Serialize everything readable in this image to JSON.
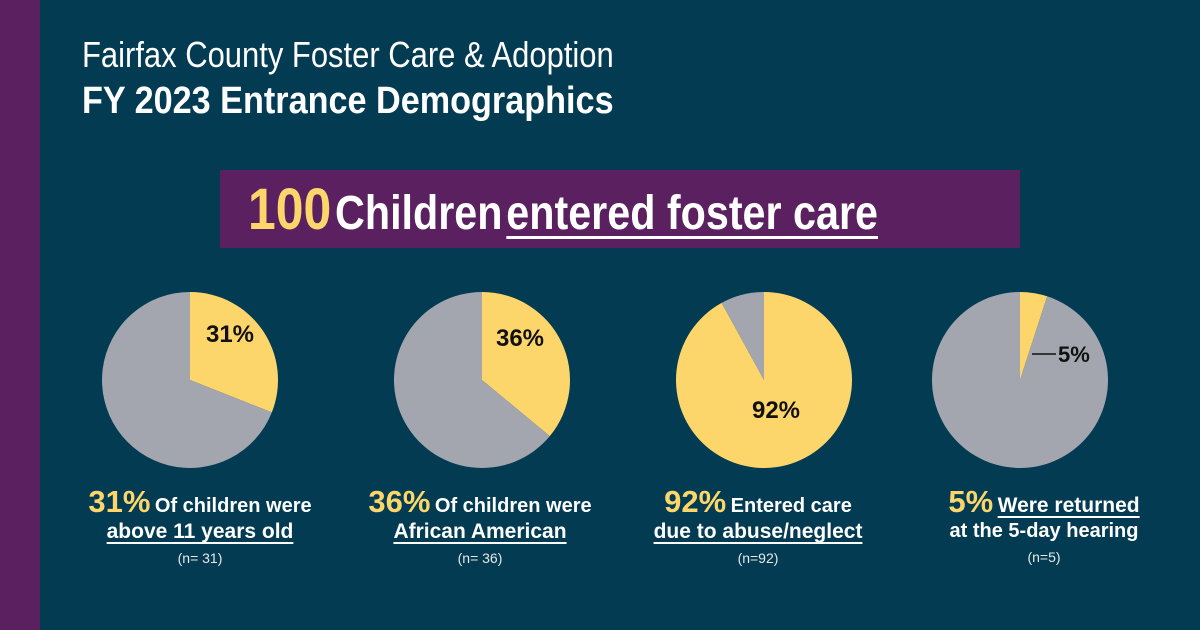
{
  "header": {
    "title_line1": "Fairfax County Foster Care & Adoption",
    "title_line2": "FY 2023 Entrance Demographics"
  },
  "banner": {
    "number": "100",
    "text": "Children",
    "underlined_text": "entered foster care"
  },
  "colors": {
    "background": "#023b52",
    "accent_purple": "#5a2060",
    "highlight_yellow": "#fdd66b",
    "pie_gray": "#a3a6ae"
  },
  "chart_data": [
    {
      "type": "pie",
      "title": "",
      "categories": [
        "Above 11 years old",
        "Other"
      ],
      "values": [
        31,
        69
      ],
      "slice_label": "31%"
    },
    {
      "type": "pie",
      "title": "",
      "categories": [
        "African American",
        "Other"
      ],
      "values": [
        36,
        64
      ],
      "slice_label": "36%"
    },
    {
      "type": "pie",
      "title": "",
      "categories": [
        "Abuse/neglect",
        "Other"
      ],
      "values": [
        92,
        8
      ],
      "slice_label": "92%"
    },
    {
      "type": "pie",
      "title": "",
      "categories": [
        "Returned at 5-day hearing",
        "Other"
      ],
      "values": [
        5,
        95
      ],
      "slice_label": "5%"
    }
  ],
  "stats": [
    {
      "pct": "31%",
      "line1": "Of children were",
      "line2": "above 11 years old",
      "n": "(n= 31)"
    },
    {
      "pct": "36%",
      "line1": "Of children were",
      "line2": "African American",
      "n": "(n= 36)"
    },
    {
      "pct": "92%",
      "line1": "Entered care",
      "line2": "due to abuse/neglect",
      "n": "(n=92)"
    },
    {
      "pct": "5%",
      "line1": "Were returned",
      "line2": "at the 5-day hearing",
      "n": "(n=5)"
    }
  ]
}
